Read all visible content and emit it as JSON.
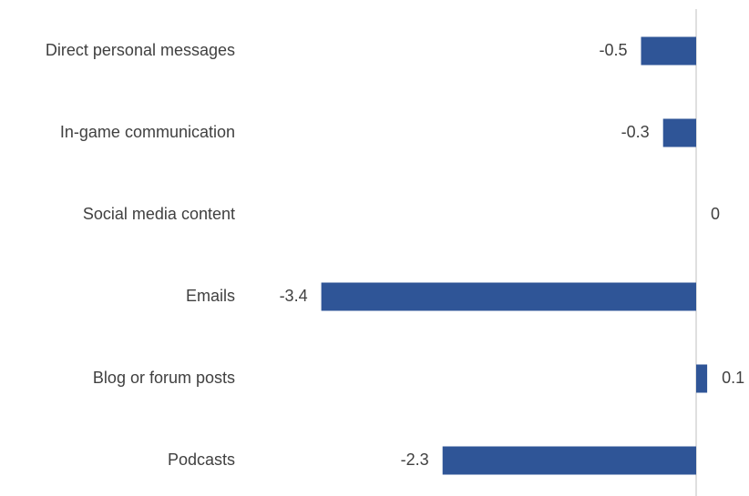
{
  "chart_data": {
    "type": "bar",
    "orientation": "horizontal",
    "categories": [
      "Direct personal messages",
      "In-game communication",
      "Social media content",
      "Emails",
      "Blog or forum posts",
      "Podcasts"
    ],
    "values": [
      -0.5,
      -0.3,
      0,
      -3.4,
      0.1,
      -2.3
    ],
    "color": "#2f5597",
    "xlim": [
      -3.5,
      0.4
    ]
  }
}
